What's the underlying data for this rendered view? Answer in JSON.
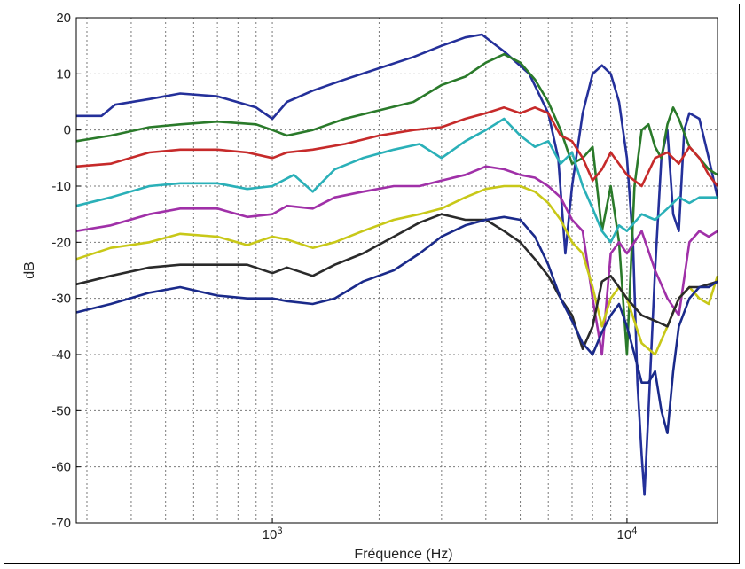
{
  "chart_data": {
    "type": "line",
    "title": "",
    "xlabel": "Fréquence (Hz)",
    "ylabel": "dB",
    "xscale": "log",
    "xlim": [
      280,
      18000
    ],
    "ylim": [
      -70,
      20
    ],
    "grid": true,
    "yticks": [
      {
        "value": 20,
        "label": "20"
      },
      {
        "value": 10,
        "label": "10"
      },
      {
        "value": 0,
        "label": "0"
      },
      {
        "value": -10,
        "label": "-10"
      },
      {
        "value": -20,
        "label": "-20"
      },
      {
        "value": -30,
        "label": "-30"
      },
      {
        "value": -40,
        "label": "-40"
      },
      {
        "value": -50,
        "label": "-50"
      },
      {
        "value": -60,
        "label": "-60"
      },
      {
        "value": -70,
        "label": "-70"
      }
    ],
    "xticks": [
      {
        "value": 1000,
        "base": "10",
        "exp": "3"
      },
      {
        "value": 10000,
        "base": "10",
        "exp": "4"
      }
    ],
    "series": [
      {
        "color": "#24309a",
        "points": [
          [
            280,
            2.5
          ],
          [
            330,
            2.5
          ],
          [
            360,
            4.5
          ],
          [
            450,
            5.5
          ],
          [
            550,
            6.5
          ],
          [
            700,
            6
          ],
          [
            900,
            4
          ],
          [
            1000,
            2
          ],
          [
            1100,
            5
          ],
          [
            1300,
            7
          ],
          [
            1600,
            9
          ],
          [
            2000,
            11
          ],
          [
            2500,
            13
          ],
          [
            3000,
            15
          ],
          [
            3500,
            16.5
          ],
          [
            3900,
            17
          ],
          [
            4500,
            14
          ],
          [
            5300,
            10
          ],
          [
            6000,
            3
          ],
          [
            6400,
            -5
          ],
          [
            6700,
            -22
          ],
          [
            7000,
            -10
          ],
          [
            7500,
            3
          ],
          [
            8000,
            10
          ],
          [
            8500,
            11.5
          ],
          [
            9000,
            10
          ],
          [
            9500,
            5
          ],
          [
            10000,
            -5
          ],
          [
            10400,
            -20
          ],
          [
            10700,
            -45
          ],
          [
            11000,
            -58
          ],
          [
            11200,
            -65
          ],
          [
            11500,
            -50
          ],
          [
            12000,
            -25
          ],
          [
            12500,
            -5
          ],
          [
            13000,
            0
          ],
          [
            13500,
            -15
          ],
          [
            14000,
            -18
          ],
          [
            14500,
            0
          ],
          [
            15000,
            3
          ],
          [
            16000,
            2
          ],
          [
            17000,
            -5
          ],
          [
            18000,
            -12
          ]
        ]
      },
      {
        "color": "#2a7a2a",
        "points": [
          [
            280,
            -2
          ],
          [
            350,
            -1
          ],
          [
            450,
            0.5
          ],
          [
            550,
            1
          ],
          [
            700,
            1.5
          ],
          [
            900,
            1
          ],
          [
            1000,
            0
          ],
          [
            1100,
            -1
          ],
          [
            1300,
            0
          ],
          [
            1600,
            2
          ],
          [
            2000,
            3.5
          ],
          [
            2500,
            5
          ],
          [
            3000,
            8
          ],
          [
            3500,
            9.5
          ],
          [
            4000,
            12
          ],
          [
            4500,
            13.5
          ],
          [
            5000,
            12
          ],
          [
            5500,
            9
          ],
          [
            6000,
            5
          ],
          [
            6500,
            0
          ],
          [
            7000,
            -6
          ],
          [
            7500,
            -5
          ],
          [
            8000,
            -3
          ],
          [
            8500,
            -18
          ],
          [
            9000,
            -10
          ],
          [
            9500,
            -20
          ],
          [
            10000,
            -40
          ],
          [
            10500,
            -10
          ],
          [
            11000,
            0
          ],
          [
            11500,
            1
          ],
          [
            12000,
            -3
          ],
          [
            12500,
            -5
          ],
          [
            13000,
            1
          ],
          [
            13500,
            4
          ],
          [
            14000,
            2
          ],
          [
            15000,
            -3
          ],
          [
            16000,
            -5
          ],
          [
            17000,
            -7
          ],
          [
            18000,
            -8
          ]
        ]
      },
      {
        "color": "#c62a2a",
        "points": [
          [
            280,
            -6.5
          ],
          [
            350,
            -6
          ],
          [
            450,
            -4
          ],
          [
            550,
            -3.5
          ],
          [
            700,
            -3.5
          ],
          [
            850,
            -4
          ],
          [
            1000,
            -5
          ],
          [
            1100,
            -4
          ],
          [
            1300,
            -3.5
          ],
          [
            1600,
            -2.5
          ],
          [
            2000,
            -1
          ],
          [
            2500,
            0
          ],
          [
            3000,
            0.5
          ],
          [
            3500,
            2
          ],
          [
            4000,
            3
          ],
          [
            4500,
            4
          ],
          [
            5000,
            3
          ],
          [
            5500,
            4
          ],
          [
            6000,
            3
          ],
          [
            6500,
            -1
          ],
          [
            7000,
            -2
          ],
          [
            7500,
            -5
          ],
          [
            8000,
            -9
          ],
          [
            8500,
            -7
          ],
          [
            9000,
            -4
          ],
          [
            10000,
            -8
          ],
          [
            11000,
            -10
          ],
          [
            12000,
            -5
          ],
          [
            13000,
            -4
          ],
          [
            14000,
            -6
          ],
          [
            15000,
            -3
          ],
          [
            16000,
            -5
          ],
          [
            17000,
            -8
          ],
          [
            18000,
            -10
          ]
        ]
      },
      {
        "color": "#2ab0b8",
        "points": [
          [
            280,
            -13.5
          ],
          [
            350,
            -12
          ],
          [
            450,
            -10
          ],
          [
            550,
            -9.5
          ],
          [
            700,
            -9.5
          ],
          [
            850,
            -10.5
          ],
          [
            1000,
            -10
          ],
          [
            1150,
            -8
          ],
          [
            1300,
            -11
          ],
          [
            1500,
            -7
          ],
          [
            1800,
            -5
          ],
          [
            2200,
            -3.5
          ],
          [
            2600,
            -2.5
          ],
          [
            3000,
            -5
          ],
          [
            3500,
            -2
          ],
          [
            4000,
            0
          ],
          [
            4500,
            2
          ],
          [
            5000,
            -1
          ],
          [
            5500,
            -3
          ],
          [
            6000,
            -2
          ],
          [
            6500,
            -6
          ],
          [
            7000,
            -4
          ],
          [
            7500,
            -10
          ],
          [
            8000,
            -14
          ],
          [
            8500,
            -18
          ],
          [
            9000,
            -20
          ],
          [
            9500,
            -17
          ],
          [
            10000,
            -18
          ],
          [
            11000,
            -15
          ],
          [
            12000,
            -16
          ],
          [
            13000,
            -14
          ],
          [
            14000,
            -12
          ],
          [
            15000,
            -13
          ],
          [
            16000,
            -12
          ],
          [
            18000,
            -12
          ]
        ]
      },
      {
        "color": "#a030a8",
        "points": [
          [
            280,
            -18
          ],
          [
            350,
            -17
          ],
          [
            450,
            -15
          ],
          [
            550,
            -14
          ],
          [
            700,
            -14
          ],
          [
            850,
            -15.5
          ],
          [
            1000,
            -15
          ],
          [
            1100,
            -13.5
          ],
          [
            1300,
            -14
          ],
          [
            1500,
            -12
          ],
          [
            1800,
            -11
          ],
          [
            2200,
            -10
          ],
          [
            2600,
            -10
          ],
          [
            3000,
            -9
          ],
          [
            3500,
            -8
          ],
          [
            4000,
            -6.5
          ],
          [
            4500,
            -7
          ],
          [
            5000,
            -8
          ],
          [
            5500,
            -8.5
          ],
          [
            6000,
            -10
          ],
          [
            6500,
            -12
          ],
          [
            7000,
            -16
          ],
          [
            7500,
            -18
          ],
          [
            8000,
            -30
          ],
          [
            8500,
            -40
          ],
          [
            9000,
            -22
          ],
          [
            9500,
            -20
          ],
          [
            10000,
            -22
          ],
          [
            11000,
            -18
          ],
          [
            12000,
            -25
          ],
          [
            13000,
            -30
          ],
          [
            14000,
            -33
          ],
          [
            15000,
            -20
          ],
          [
            16000,
            -18
          ],
          [
            17000,
            -19
          ],
          [
            18000,
            -18
          ]
        ]
      },
      {
        "color": "#c8c818",
        "points": [
          [
            280,
            -23
          ],
          [
            350,
            -21
          ],
          [
            450,
            -20
          ],
          [
            550,
            -18.5
          ],
          [
            700,
            -19
          ],
          [
            850,
            -20.5
          ],
          [
            1000,
            -19
          ],
          [
            1100,
            -19.5
          ],
          [
            1300,
            -21
          ],
          [
            1500,
            -20
          ],
          [
            1800,
            -18
          ],
          [
            2200,
            -16
          ],
          [
            2600,
            -15
          ],
          [
            3000,
            -14
          ],
          [
            3500,
            -12
          ],
          [
            4000,
            -10.5
          ],
          [
            4500,
            -10
          ],
          [
            5000,
            -10
          ],
          [
            5500,
            -11
          ],
          [
            6000,
            -13
          ],
          [
            6500,
            -16
          ],
          [
            7000,
            -20
          ],
          [
            7500,
            -22
          ],
          [
            8000,
            -28
          ],
          [
            8500,
            -35
          ],
          [
            9000,
            -30
          ],
          [
            9500,
            -28
          ],
          [
            10000,
            -30
          ],
          [
            11000,
            -38
          ],
          [
            12000,
            -40
          ],
          [
            13000,
            -35
          ],
          [
            14000,
            -30
          ],
          [
            15000,
            -28
          ],
          [
            16000,
            -30
          ],
          [
            17000,
            -31
          ],
          [
            18000,
            -26
          ]
        ]
      },
      {
        "color": "#2a2a2a",
        "points": [
          [
            280,
            -27.5
          ],
          [
            350,
            -26
          ],
          [
            450,
            -24.5
          ],
          [
            550,
            -24
          ],
          [
            700,
            -24
          ],
          [
            850,
            -24
          ],
          [
            1000,
            -25.5
          ],
          [
            1100,
            -24.5
          ],
          [
            1300,
            -26
          ],
          [
            1500,
            -24
          ],
          [
            1800,
            -22
          ],
          [
            2200,
            -19
          ],
          [
            2600,
            -16.5
          ],
          [
            3000,
            -15
          ],
          [
            3500,
            -16
          ],
          [
            4000,
            -16
          ],
          [
            4500,
            -18
          ],
          [
            5000,
            -20
          ],
          [
            5500,
            -23
          ],
          [
            6000,
            -26
          ],
          [
            6500,
            -30
          ],
          [
            7000,
            -33
          ],
          [
            7500,
            -39
          ],
          [
            8000,
            -35
          ],
          [
            8500,
            -27
          ],
          [
            9000,
            -26
          ],
          [
            9500,
            -28
          ],
          [
            10000,
            -30
          ],
          [
            11000,
            -33
          ],
          [
            12000,
            -34
          ],
          [
            13000,
            -35
          ],
          [
            14000,
            -30
          ],
          [
            15000,
            -28
          ],
          [
            16000,
            -28
          ],
          [
            18000,
            -27
          ]
        ]
      },
      {
        "color": "#1a2a8a",
        "points": [
          [
            280,
            -32.5
          ],
          [
            350,
            -31
          ],
          [
            450,
            -29
          ],
          [
            550,
            -28
          ],
          [
            700,
            -29.5
          ],
          [
            850,
            -30
          ],
          [
            1000,
            -30
          ],
          [
            1100,
            -30.5
          ],
          [
            1300,
            -31
          ],
          [
            1500,
            -30
          ],
          [
            1800,
            -27
          ],
          [
            2200,
            -25
          ],
          [
            2600,
            -22
          ],
          [
            3000,
            -19
          ],
          [
            3500,
            -17
          ],
          [
            4000,
            -16
          ],
          [
            4500,
            -15.5
          ],
          [
            5000,
            -16
          ],
          [
            5500,
            -19
          ],
          [
            6000,
            -24
          ],
          [
            6500,
            -30
          ],
          [
            7000,
            -34
          ],
          [
            7500,
            -38
          ],
          [
            8000,
            -40
          ],
          [
            8500,
            -36
          ],
          [
            9000,
            -33
          ],
          [
            9500,
            -31
          ],
          [
            10000,
            -35
          ],
          [
            10500,
            -40
          ],
          [
            11000,
            -45
          ],
          [
            11500,
            -45
          ],
          [
            12000,
            -43
          ],
          [
            12500,
            -50
          ],
          [
            13000,
            -54
          ],
          [
            13500,
            -43
          ],
          [
            14000,
            -35
          ],
          [
            15000,
            -30
          ],
          [
            16000,
            -28
          ],
          [
            17000,
            -28
          ],
          [
            18000,
            -27
          ]
        ]
      }
    ]
  }
}
